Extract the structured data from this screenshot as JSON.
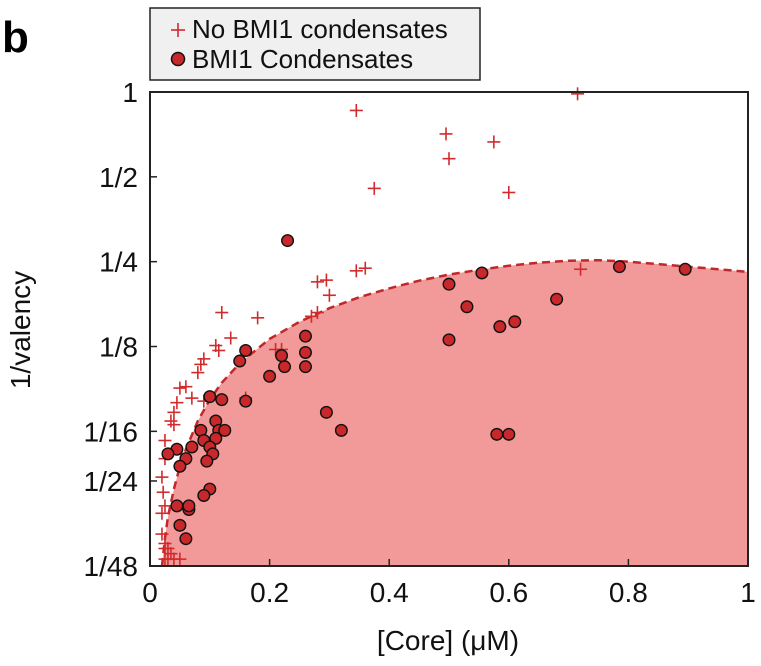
{
  "panel_label": "b",
  "colors": {
    "region_fill": "#f29999",
    "boundary": "#c0282a",
    "plus": "#d12b2d",
    "circle_fill": "#c8282a",
    "circle_edge": "#111111",
    "legend_bg": "#f0f0f0"
  },
  "chart_data": {
    "type": "scatter",
    "xlabel": "[Core] (μM)",
    "ylabel": "1/valency",
    "xlim": [
      0,
      1
    ],
    "ylim": [
      0.0208,
      1
    ],
    "y_scale": "log",
    "grid": false,
    "legend_position": "top-left",
    "x_ticks": [
      {
        "value": 0,
        "label": "0"
      },
      {
        "value": 0.2,
        "label": "0.2"
      },
      {
        "value": 0.4,
        "label": "0.4"
      },
      {
        "value": 0.6,
        "label": "0.6"
      },
      {
        "value": 0.8,
        "label": "0.8"
      },
      {
        "value": 1,
        "label": "1"
      }
    ],
    "y_ticks": [
      {
        "value": 1,
        "label": "1"
      },
      {
        "value": 0.5,
        "label": "1/2"
      },
      {
        "value": 0.25,
        "label": "1/4"
      },
      {
        "value": 0.125,
        "label": "1/8"
      },
      {
        "value": 0.0625,
        "label": "1/16"
      },
      {
        "value": 0.04167,
        "label": "1/24"
      },
      {
        "value": 0.02083,
        "label": "1/48"
      }
    ],
    "phase_boundary": {
      "style": "dashed",
      "points": [
        [
          0.02,
          0.0208
        ],
        [
          0.025,
          0.026
        ],
        [
          0.03,
          0.031
        ],
        [
          0.04,
          0.039
        ],
        [
          0.05,
          0.047
        ],
        [
          0.06,
          0.054
        ],
        [
          0.08,
          0.068
        ],
        [
          0.1,
          0.081
        ],
        [
          0.12,
          0.093
        ],
        [
          0.15,
          0.109
        ],
        [
          0.2,
          0.133
        ],
        [
          0.25,
          0.153
        ],
        [
          0.3,
          0.171
        ],
        [
          0.35,
          0.187
        ],
        [
          0.4,
          0.201
        ],
        [
          0.45,
          0.214
        ],
        [
          0.5,
          0.225
        ],
        [
          0.55,
          0.234
        ],
        [
          0.6,
          0.242
        ],
        [
          0.65,
          0.248
        ],
        [
          0.7,
          0.252
        ],
        [
          0.75,
          0.253
        ],
        [
          0.8,
          0.25
        ],
        [
          0.85,
          0.245
        ],
        [
          0.9,
          0.24
        ],
        [
          0.95,
          0.235
        ],
        [
          1.0,
          0.23
        ]
      ]
    },
    "series": [
      {
        "name": "No BMI1 condensates",
        "marker": "plus",
        "points": [
          [
            0.715,
            0.985
          ],
          [
            0.345,
            0.86
          ],
          [
            0.495,
            0.71
          ],
          [
            0.5,
            0.58
          ],
          [
            0.575,
            0.665
          ],
          [
            0.375,
            0.455
          ],
          [
            0.6,
            0.44
          ],
          [
            0.345,
            0.232
          ],
          [
            0.36,
            0.237
          ],
          [
            0.28,
            0.212
          ],
          [
            0.295,
            0.215
          ],
          [
            0.3,
            0.19
          ],
          [
            0.72,
            0.235
          ],
          [
            0.27,
            0.16
          ],
          [
            0.28,
            0.165
          ],
          [
            0.12,
            0.165
          ],
          [
            0.135,
            0.134
          ],
          [
            0.18,
            0.158
          ],
          [
            0.11,
            0.126
          ],
          [
            0.115,
            0.121
          ],
          [
            0.085,
            0.108
          ],
          [
            0.09,
            0.113
          ],
          [
            0.08,
            0.101
          ],
          [
            0.06,
            0.09
          ],
          [
            0.05,
            0.089
          ],
          [
            0.07,
            0.082
          ],
          [
            0.045,
            0.079
          ],
          [
            0.04,
            0.073
          ],
          [
            0.04,
            0.066
          ],
          [
            0.035,
            0.068
          ],
          [
            0.025,
            0.058
          ],
          [
            0.025,
            0.05
          ],
          [
            0.02,
            0.043
          ],
          [
            0.022,
            0.038
          ],
          [
            0.025,
            0.034
          ],
          [
            0.02,
            0.032
          ],
          [
            0.02,
            0.027
          ],
          [
            0.025,
            0.025
          ],
          [
            0.025,
            0.024
          ],
          [
            0.03,
            0.024
          ],
          [
            0.035,
            0.023
          ],
          [
            0.025,
            0.022
          ],
          [
            0.03,
            0.022
          ],
          [
            0.04,
            0.022
          ],
          [
            0.05,
            0.022
          ],
          [
            0.16,
            0.082
          ],
          [
            0.21,
            0.122
          ],
          [
            0.22,
            0.122
          ],
          [
            0.09,
            0.08
          ]
        ]
      },
      {
        "name": "BMI1 Condensates",
        "marker": "circle",
        "points": [
          [
            0.23,
            0.297
          ],
          [
            0.5,
            0.208
          ],
          [
            0.555,
            0.228
          ],
          [
            0.785,
            0.24
          ],
          [
            0.895,
            0.235
          ],
          [
            0.68,
            0.184
          ],
          [
            0.53,
            0.173
          ],
          [
            0.61,
            0.153
          ],
          [
            0.585,
            0.147
          ],
          [
            0.5,
            0.132
          ],
          [
            0.26,
            0.136
          ],
          [
            0.26,
            0.119
          ],
          [
            0.26,
            0.106
          ],
          [
            0.225,
            0.106
          ],
          [
            0.22,
            0.116
          ],
          [
            0.2,
            0.098
          ],
          [
            0.15,
            0.111
          ],
          [
            0.16,
            0.121
          ],
          [
            0.295,
            0.073
          ],
          [
            0.32,
            0.063
          ],
          [
            0.58,
            0.061
          ],
          [
            0.6,
            0.061
          ],
          [
            0.1,
            0.083
          ],
          [
            0.12,
            0.081
          ],
          [
            0.16,
            0.08
          ],
          [
            0.11,
            0.068
          ],
          [
            0.115,
            0.063
          ],
          [
            0.125,
            0.063
          ],
          [
            0.085,
            0.063
          ],
          [
            0.09,
            0.058
          ],
          [
            0.11,
            0.059
          ],
          [
            0.1,
            0.055
          ],
          [
            0.105,
            0.052
          ],
          [
            0.095,
            0.049
          ],
          [
            0.07,
            0.055
          ],
          [
            0.06,
            0.05
          ],
          [
            0.05,
            0.047
          ],
          [
            0.045,
            0.054
          ],
          [
            0.03,
            0.052
          ],
          [
            0.1,
            0.039
          ],
          [
            0.09,
            0.037
          ],
          [
            0.045,
            0.034
          ],
          [
            0.065,
            0.033
          ],
          [
            0.05,
            0.029
          ],
          [
            0.06,
            0.026
          ],
          [
            0.065,
            0.034
          ]
        ]
      }
    ]
  }
}
